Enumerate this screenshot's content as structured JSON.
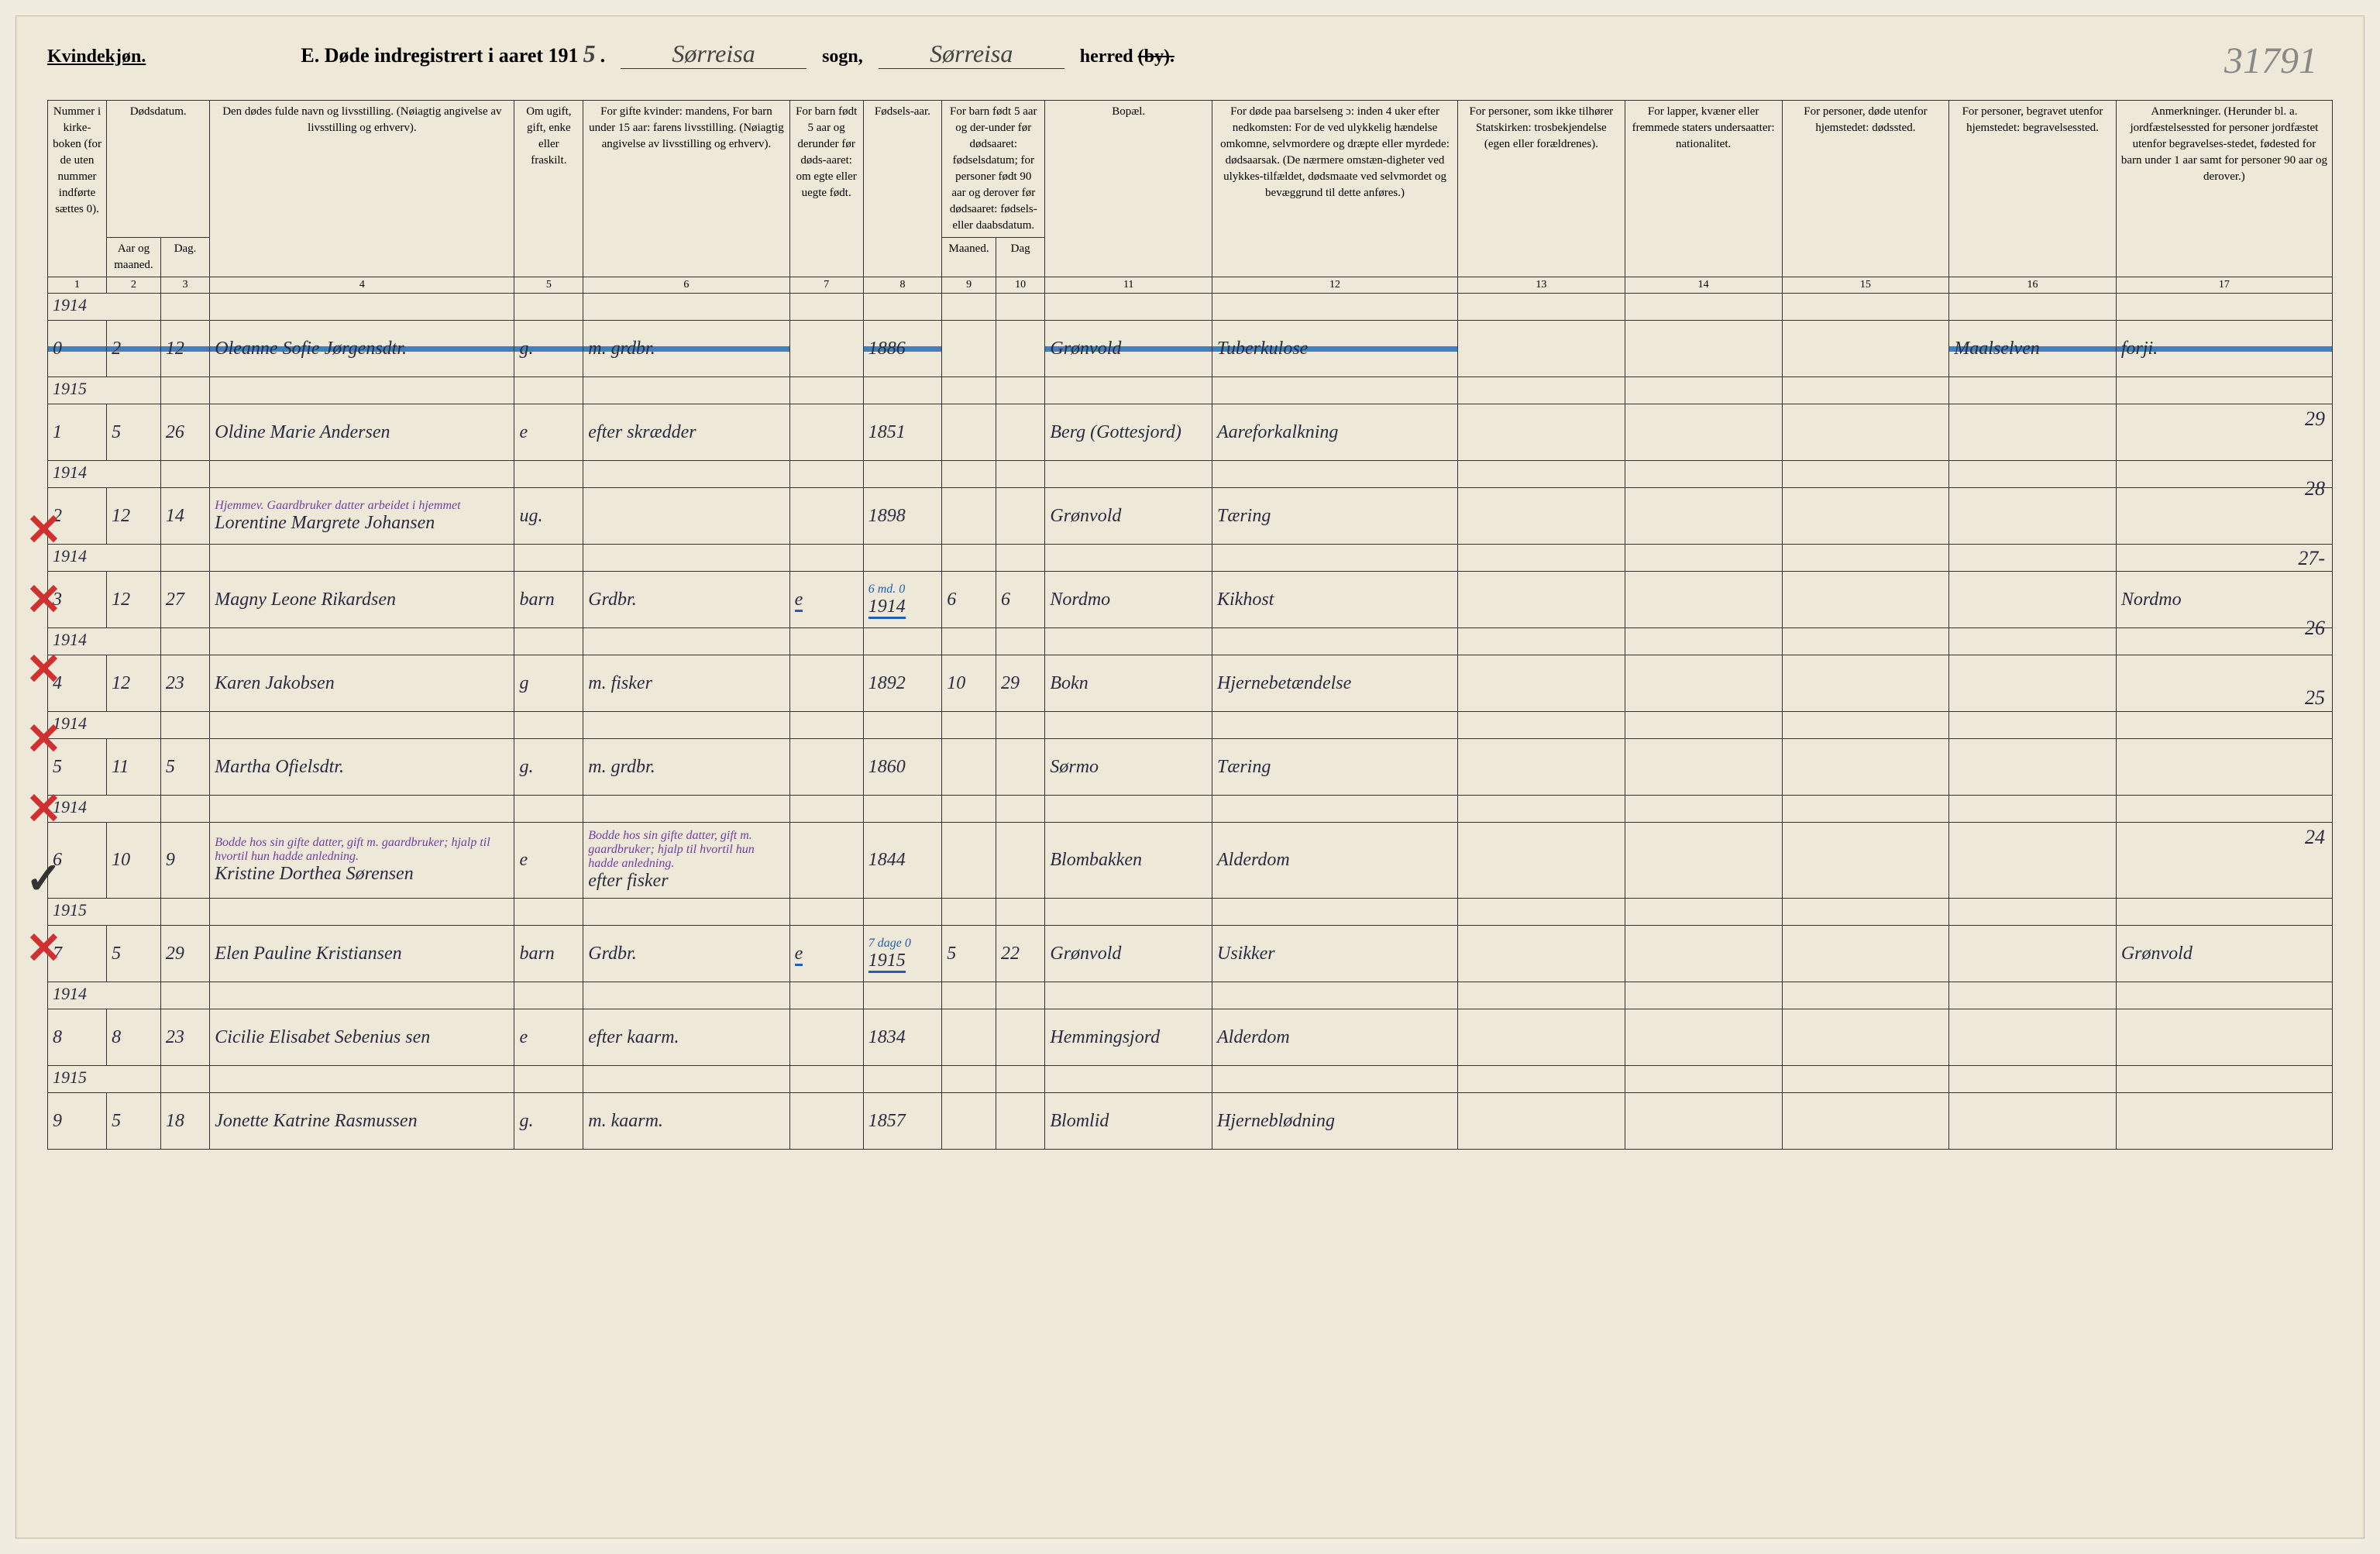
{
  "topRightNumber": "31791",
  "genderLabel": "Kvindekjøn.",
  "formLetter": "E.",
  "formTitle": "Døde indregistrert i aaret 191",
  "yearDigit": "5",
  "sognFill": "Sørreisa",
  "sognLabel": "sogn,",
  "herredFill": "Sørreisa",
  "herredLabel": "herred",
  "herredStrike": "(by).",
  "headers": {
    "c1": "Nummer i kirke-boken (for de uten nummer indførte sættes 0).",
    "c2a": "Dødsdatum.",
    "c2_aar": "Aar og maaned.",
    "c2_dag": "Dag.",
    "c4": "Den dødes fulde navn og livsstilling.\n(Nøiagtig angivelse av livsstilling og erhverv).",
    "c5": "Om ugift, gift, enke eller fraskilt.",
    "c6": "For gifte kvinder:\nmandens,\nFor barn under 15 aar:\nfarens livsstilling.\n(Nøiagtig angivelse av livsstilling og erhverv).",
    "c7": "For barn født 5 aar og derunder før døds-aaret: om egte eller uegte født.",
    "c8": "Fødsels-aar.",
    "c9": "For barn født 5 aar og der-under før dødsaaret: fødselsdatum; for personer født 90 aar og derover før dødsaaret: fødsels- eller daabsdatum.",
    "c9_m": "Maaned.",
    "c9_d": "Dag",
    "c11": "Bopæl.",
    "c12": "For døde paa barselseng ɔ: inden 4 uker efter nedkomsten: For de ved ulykkelig hændelse omkomne, selvmordere og dræpte eller myrdede: dødsaarsak. (De nærmere omstæn-digheter ved ulykkes-tilfældet, dødsmaate ved selvmordet og bevæggrund til dette anføres.)",
    "c13": "For personer, som ikke tilhører Statskirken: trosbekjendelse (egen eller forældrenes).",
    "c14": "For lapper, kvæner eller fremmede staters undersaatter: nationalitet.",
    "c15": "For personer, døde utenfor hjemstedet: dødssted.",
    "c16": "For personer, begravet utenfor hjemstedet: begravelsessted.",
    "c17": "Anmerkninger. (Herunder bl. a. jordfæstelsessted for personer jordfæstet utenfor begravelses-stedet, fødested for barn under 1 aar samt for personer 90 aar og derover.)"
  },
  "colNums": [
    "1",
    "2",
    "3",
    "4",
    "5",
    "6",
    "7",
    "8",
    "9",
    "10",
    "11",
    "12",
    "13",
    "14",
    "15",
    "16",
    "17"
  ],
  "rows": [
    {
      "year": "1914",
      "num": "0",
      "aar": "2",
      "dag": "12",
      "name": "Oleanne Sofie Jørgensdtr.",
      "status": "g.",
      "rel": "m. grdbr.",
      "egte": "",
      "faar": "1886",
      "m": "",
      "d": "",
      "bopael": "Grønvold",
      "cause": "Tuberkulose",
      "c13": "",
      "c14": "",
      "c15": "",
      "c16": "Maalselven",
      "c17": "forji.",
      "strike": true,
      "redX": false
    },
    {
      "year": "1915",
      "num": "1",
      "aar": "5",
      "dag": "26",
      "name": "Oldine Marie Andersen",
      "status": "e",
      "rel": "efter skrædder",
      "egte": "",
      "faar": "1851",
      "m": "",
      "d": "",
      "bopael": "Berg (Gottesjord)",
      "cause": "Aareforkalkning",
      "c13": "",
      "c14": "",
      "c15": "",
      "c16": "",
      "c17": "",
      "strike": false,
      "redX": false,
      "margin": "29"
    },
    {
      "year": "1914",
      "num": "2",
      "aar": "12",
      "dag": "14",
      "name": "Lorentine Margrete Johansen",
      "status": "ug.",
      "rel": "",
      "egte": "",
      "faar": "1898",
      "m": "",
      "d": "",
      "bopael": "Grønvold",
      "cause": "Tæring",
      "c13": "",
      "c14": "",
      "c15": "",
      "c16": "",
      "c17": "",
      "strike": false,
      "redX": true,
      "purpleNote": "Hjemmev. Gaardbruker datter arbeidet i hjemmet",
      "redUnderYear": true,
      "margin": "28"
    },
    {
      "year": "1914",
      "num": "3",
      "aar": "12",
      "dag": "27",
      "name": "Magny Leone Rikardsen",
      "status": "barn",
      "rel": "Grdbr.",
      "egte": "e",
      "faar": "1914",
      "m": "6",
      "d": "6",
      "bopael": "Nordmo",
      "cause": "Kikhost",
      "c13": "",
      "c14": "",
      "c15": "",
      "c16": "",
      "c17": "Nordmo",
      "strike": false,
      "redX": true,
      "blueUnder": true,
      "annotation": "6 md. 0",
      "margin": "27-"
    },
    {
      "year": "1914",
      "num": "4",
      "aar": "12",
      "dag": "23",
      "name": "Karen Jakobsen",
      "status": "g",
      "rel": "m. fisker",
      "egte": "",
      "faar": "1892",
      "m": "10",
      "d": "29",
      "bopael": "Bokn",
      "cause": "Hjernebetændelse",
      "c13": "",
      "c14": "",
      "c15": "",
      "c16": "",
      "c17": "",
      "strike": false,
      "redX": true,
      "margin": "26"
    },
    {
      "year": "1914",
      "num": "5",
      "aar": "11",
      "dag": "5",
      "name": "Martha Ofielsdtr.",
      "status": "g.",
      "rel": "m. grdbr.",
      "egte": "",
      "faar": "1860",
      "m": "",
      "d": "",
      "bopael": "Sørmo",
      "cause": "Tæring",
      "c13": "",
      "c14": "",
      "c15": "",
      "c16": "",
      "c17": "",
      "strike": false,
      "redX": true,
      "margin": "25"
    },
    {
      "year": "1914",
      "num": "6",
      "aar": "10",
      "dag": "9",
      "name": "Kristine Dorthea Sørensen",
      "status": "e",
      "rel": "efter fisker",
      "egte": "",
      "faar": "1844",
      "m": "",
      "d": "",
      "bopael": "Blombakken",
      "cause": "Alderdom",
      "c13": "",
      "c14": "",
      "c15": "",
      "c16": "",
      "c17": "",
      "strike": false,
      "redX": true,
      "purpleNote": "Bodde hos sin gifte datter, gift m. gaardbruker; hjalp til hvortil hun hadde anledning."
    },
    {
      "year": "1915",
      "num": "7",
      "aar": "5",
      "dag": "29",
      "name": "Elen Pauline Kristiansen",
      "status": "barn",
      "rel": "Grdbr.",
      "egte": "e",
      "faar": "1915",
      "m": "5",
      "d": "22",
      "bopael": "Grønvold",
      "cause": "Usikker",
      "c13": "",
      "c14": "",
      "c15": "",
      "c16": "",
      "c17": "Grønvold",
      "strike": false,
      "redX": false,
      "checkmark": true,
      "blueUnder": true,
      "annotation": "7 dage 0",
      "margin": "24"
    },
    {
      "year": "1914",
      "num": "8",
      "aar": "8",
      "dag": "23",
      "name": "Cicilie Elisabet Sebenius sen",
      "status": "e",
      "rel": "efter kaarm.",
      "egte": "",
      "faar": "1834",
      "m": "",
      "d": "",
      "bopael": "Hemmingsjord",
      "cause": "Alderdom",
      "c13": "",
      "c14": "",
      "c15": "",
      "c16": "",
      "c17": "",
      "strike": false,
      "redX": true
    },
    {
      "year": "1915",
      "num": "9",
      "aar": "5",
      "dag": "18",
      "name": "Jonette Katrine Rasmussen",
      "status": "g.",
      "rel": "m. kaarm.",
      "egte": "",
      "faar": "1857",
      "m": "",
      "d": "",
      "bopael": "Blomlid",
      "cause": "Hjerneblødning",
      "c13": "",
      "c14": "",
      "c15": "",
      "c16": "",
      "c17": "",
      "strike": false,
      "redX": false
    }
  ],
  "colWidths": {
    "c1": "60px",
    "c2": "55px",
    "c3": "50px",
    "c4": "310px",
    "c5": "70px",
    "c6": "210px",
    "c7": "75px",
    "c8": "80px",
    "c9": "55px",
    "c10": "50px",
    "c11": "170px",
    "c12": "250px",
    "c13": "170px",
    "c14": "160px",
    "c15": "170px",
    "c16": "170px",
    "c17": "220px"
  }
}
